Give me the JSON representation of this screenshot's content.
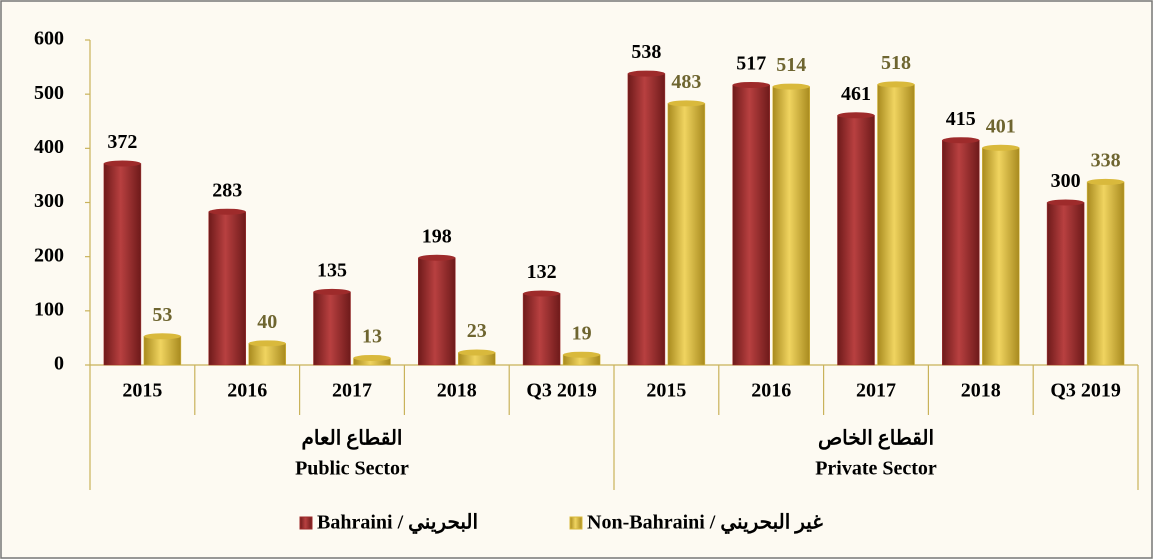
{
  "chart_data": {
    "type": "bar",
    "categories": [
      "2015",
      "2016",
      "2017",
      "2018",
      "Q3 2019",
      "2015",
      "2016",
      "2017",
      "2018",
      "Q3 2019"
    ],
    "groups": [
      {
        "label_ar": "القطاع العام",
        "label": "Public Sector"
      },
      {
        "label_ar": "القطاع الخاص",
        "label": "Private Sector"
      }
    ],
    "series": [
      {
        "name": "Bahraini / البحريني",
        "color": "#9e2b2b",
        "label_color": "#000000",
        "values": [
          372,
          283,
          135,
          198,
          132,
          538,
          517,
          461,
          415,
          300
        ]
      },
      {
        "name": "Non-Bahraini / غير البحريني",
        "color": "#d9b93c",
        "label_color": "#6e6530",
        "values": [
          53,
          40,
          13,
          23,
          19,
          483,
          514,
          518,
          401,
          338
        ]
      }
    ],
    "ylim": [
      0,
      600
    ],
    "yticks": [
      0,
      100,
      200,
      300,
      400,
      500,
      600
    ],
    "grid": false
  }
}
